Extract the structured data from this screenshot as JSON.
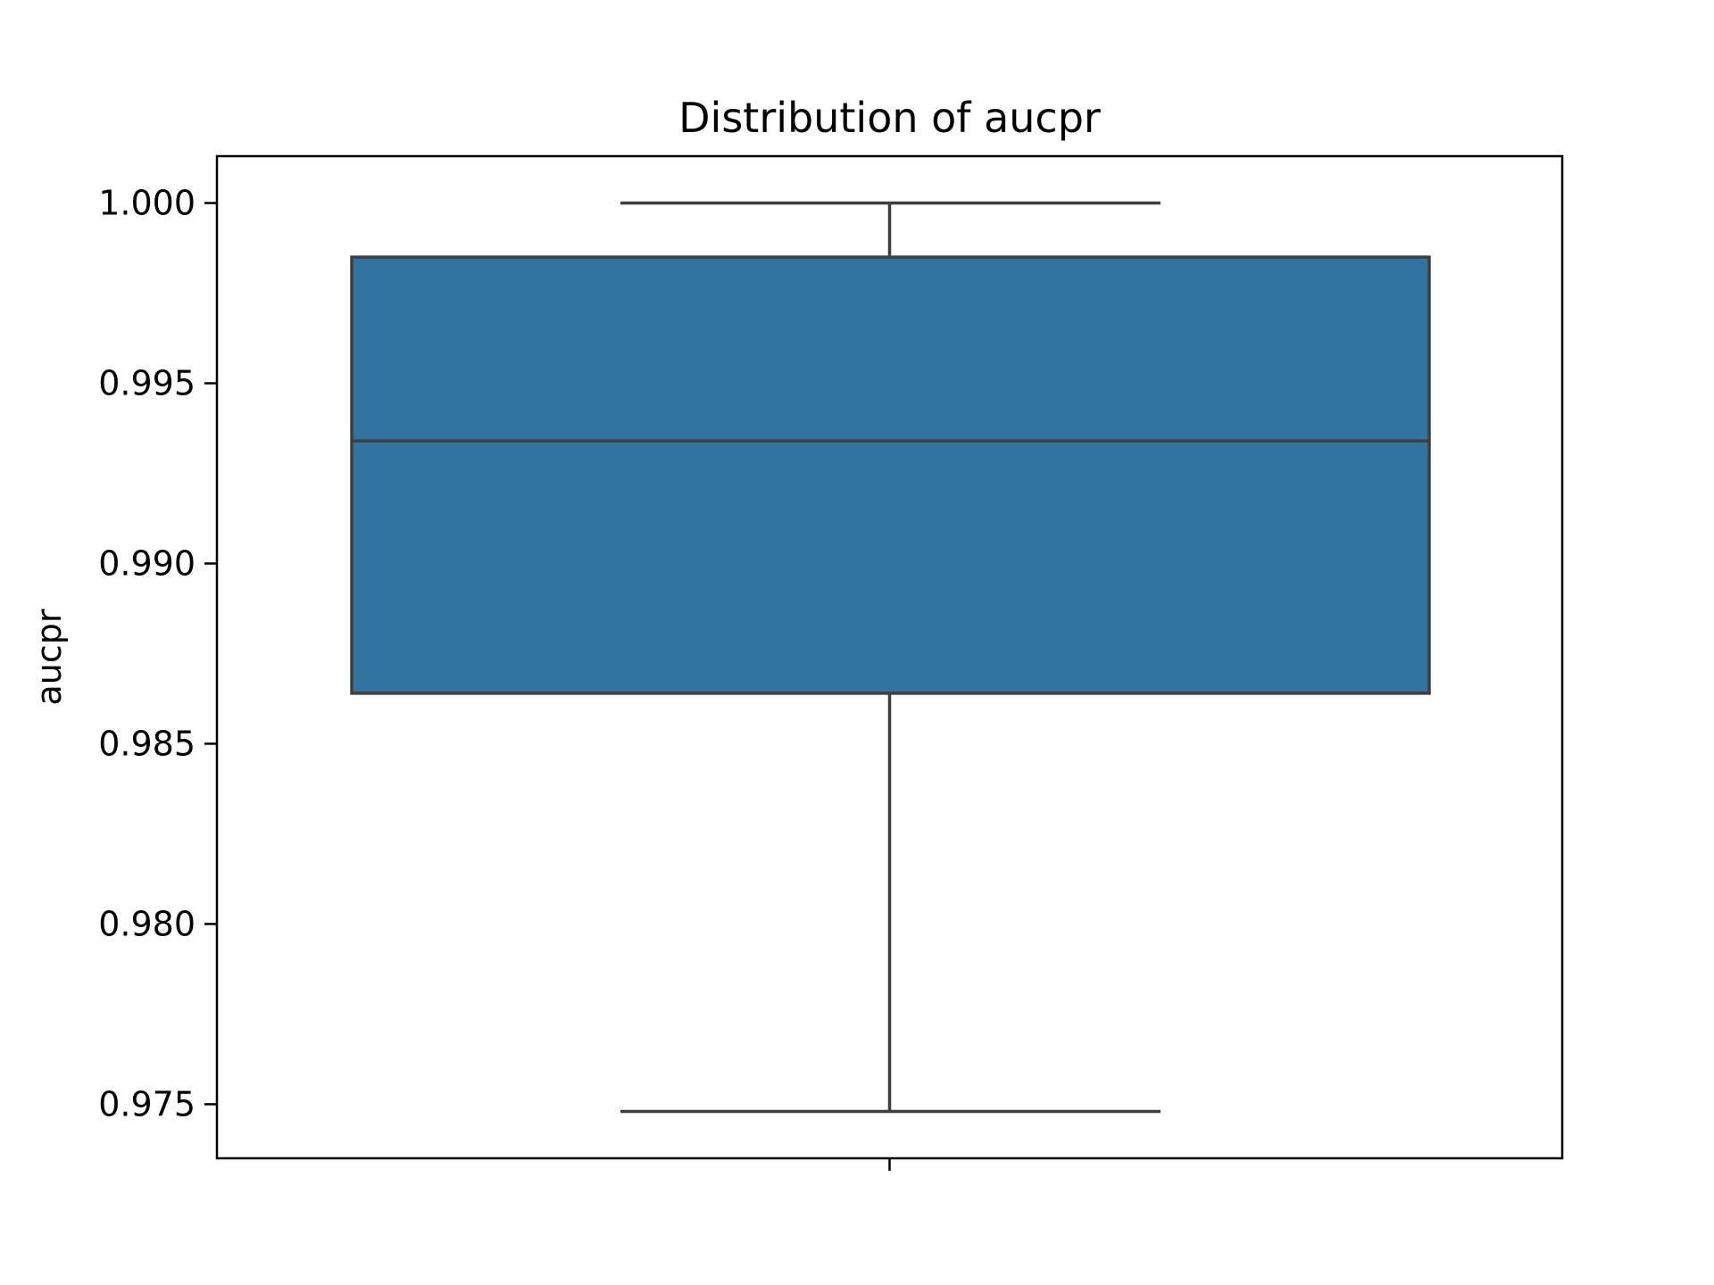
{
  "chart_data": {
    "type": "box",
    "title": "Distribution of aucpr",
    "xlabel": "",
    "ylabel": "aucpr",
    "ylim": [
      0.9735,
      1.0013
    ],
    "yticks": [
      0.975,
      0.98,
      0.985,
      0.99,
      0.995,
      1.0
    ],
    "ytick_labels": [
      "0.975",
      "0.980",
      "0.985",
      "0.990",
      "0.995",
      "1.000"
    ],
    "grid": false,
    "legend": "none",
    "box": {
      "whisker_low": 0.9748,
      "q1": 0.9864,
      "median": 0.9934,
      "q3": 0.9985,
      "whisker_high": 1.0
    },
    "colors": {
      "box_fill": "#3274a1",
      "line": "#3f3f3f",
      "axes": "#000000"
    }
  }
}
